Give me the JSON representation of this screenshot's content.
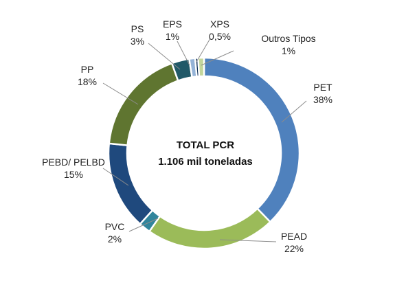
{
  "chart_data": {
    "type": "pie",
    "style": "donut",
    "center_label": {
      "line1": "TOTAL PCR",
      "line2": "1.106 mil toneladas"
    },
    "slices": [
      {
        "name": "PET",
        "value_label": "38%",
        "value": 38,
        "color": "#4f81bd"
      },
      {
        "name": "PEAD",
        "value_label": "22%",
        "value": 22,
        "color": "#9bbb59"
      },
      {
        "name": "PVC",
        "value_label": "2%",
        "value": 2,
        "color": "#31859c"
      },
      {
        "name": "PEBD/ PELBD",
        "value_label": "15%",
        "value": 15,
        "color": "#1f497d"
      },
      {
        "name": "PP",
        "value_label": "18%",
        "value": 18,
        "color": "#5f7530"
      },
      {
        "name": "PS",
        "value_label": "3%",
        "value": 3,
        "color": "#215968"
      },
      {
        "name": "EPS",
        "value_label": "1%",
        "value": 1,
        "color": "#95b3d7"
      },
      {
        "name": "XPS",
        "value_label": "0,5%",
        "value": 0.5,
        "color": "#17375e"
      },
      {
        "name": "Outros Tipos",
        "value_label": "1%",
        "value": 1,
        "color": "#c3d69b"
      }
    ],
    "legend": "none (labels with leader lines)"
  }
}
